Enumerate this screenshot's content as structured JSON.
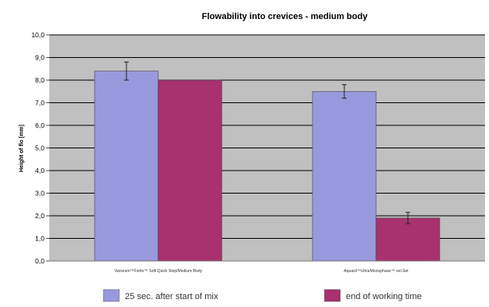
{
  "chart_data": {
    "type": "bar",
    "title": "Flowability into crevices - medium body",
    "ylabel": "Height of flo [mm]",
    "ylim": [
      0,
      10
    ],
    "yticks": [
      "0,0",
      "1,0",
      "2,0",
      "3,0",
      "4,0",
      "5,0",
      "6,0",
      "7,0",
      "8,0",
      "9,0",
      "10,0"
    ],
    "categories": [
      "Varseum™Fortis™ Soft Quick Step/Medium Body",
      "Aquasil™Ultra/Monophase™ sel.Set"
    ],
    "series": [
      {
        "name": "25 sec. after start of mix",
        "values": [
          8.4,
          7.5
        ],
        "errors": [
          0.4,
          0.3
        ],
        "color": "#9999dd"
      },
      {
        "name": "end of working time",
        "values": [
          8.0,
          1.9
        ],
        "errors": [
          0,
          0.25
        ],
        "color": "#a8326e"
      }
    ],
    "background": "#c0c0c0",
    "gridlines": true,
    "legend_position": "bottom"
  }
}
